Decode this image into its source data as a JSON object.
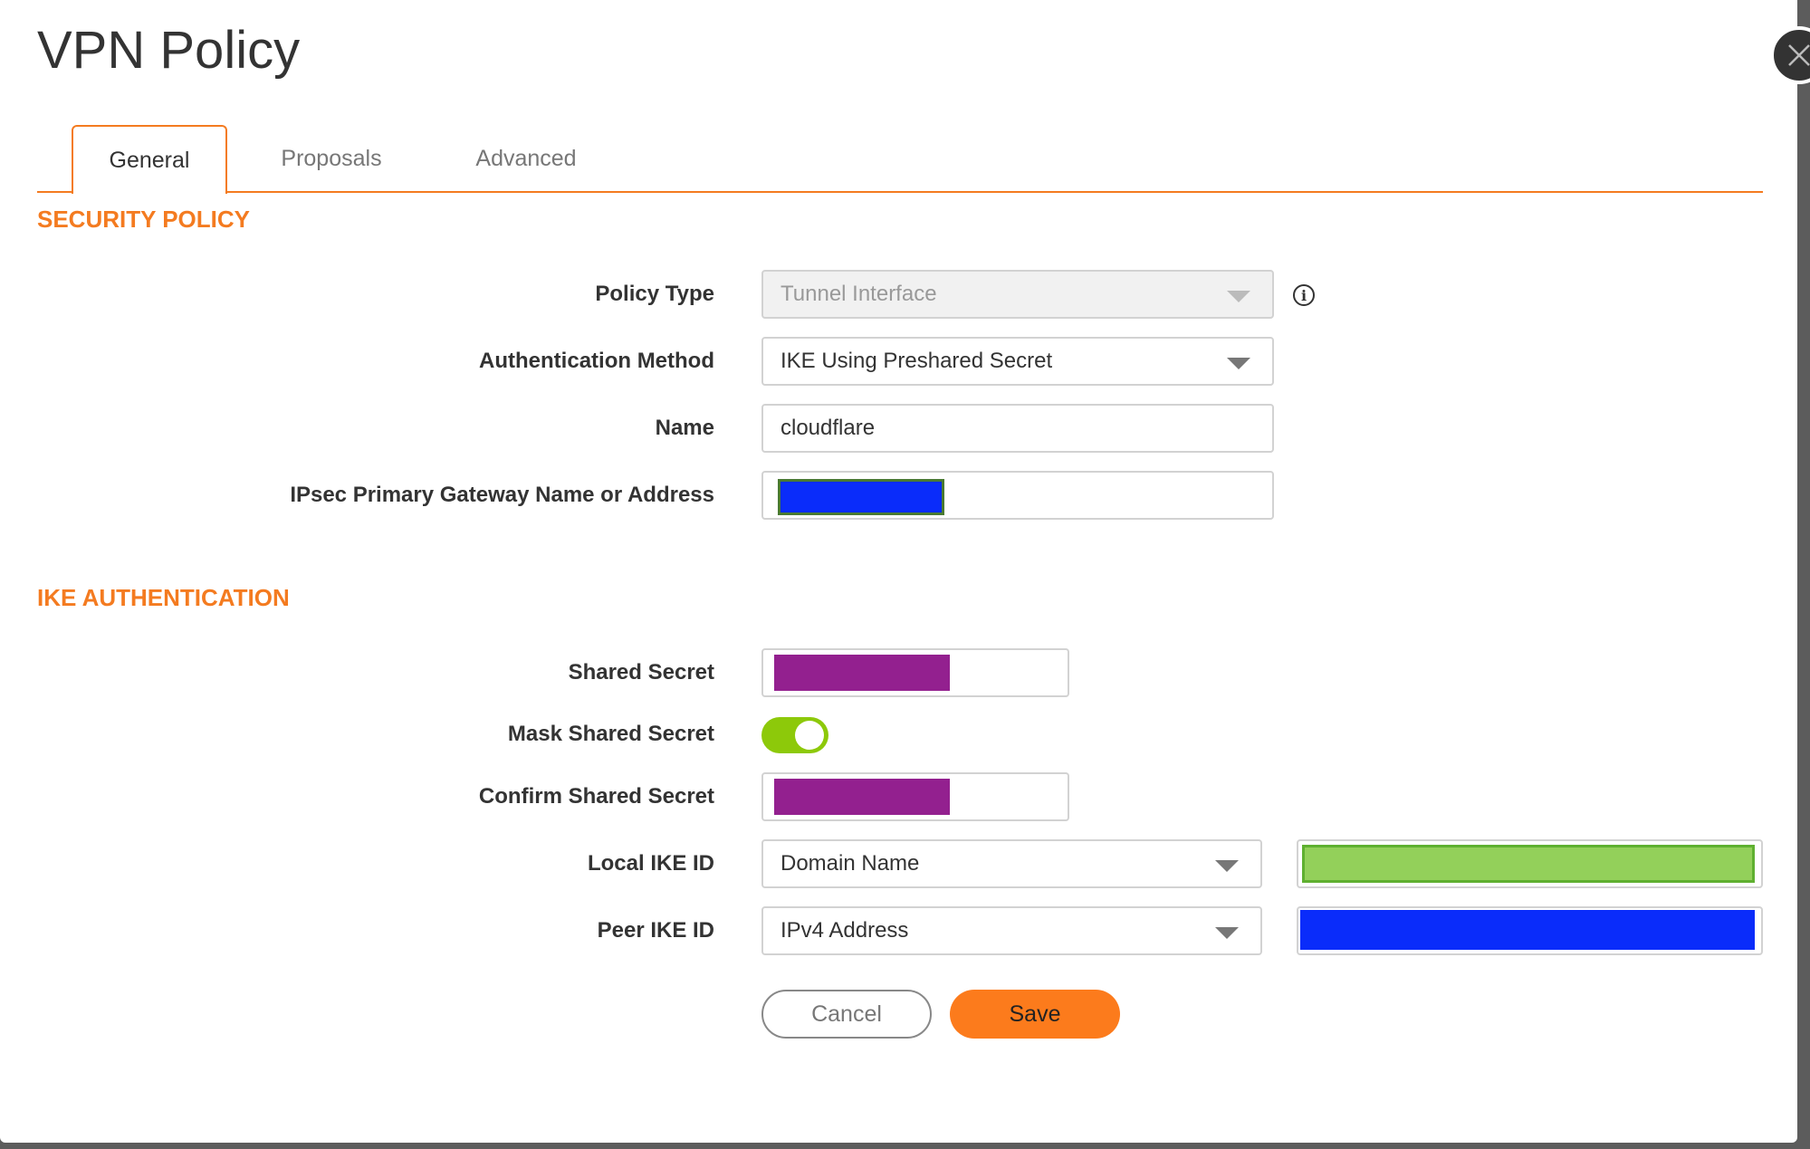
{
  "dialog": {
    "title": "VPN Policy"
  },
  "tabs": [
    {
      "label": "General",
      "active": true
    },
    {
      "label": "Proposals"
    },
    {
      "label": "Advanced"
    }
  ],
  "sections": {
    "security_policy": "SECURITY POLICY",
    "ike_authentication": "IKE AUTHENTICATION"
  },
  "form": {
    "policy_type": {
      "label": "Policy Type",
      "value": "Tunnel Interface",
      "disabled": true
    },
    "auth_method": {
      "label": "Authentication Method",
      "value": "IKE Using Preshared Secret"
    },
    "name": {
      "label": "Name",
      "value": "cloudflare"
    },
    "gateway": {
      "label": "IPsec Primary Gateway Name or Address",
      "redaction_color": "#0a2cfa"
    },
    "shared_secret": {
      "label": "Shared Secret",
      "redaction_color": "#93208f"
    },
    "mask_shared_secret": {
      "label": "Mask Shared Secret",
      "on": true,
      "color": "#8dc90a"
    },
    "confirm_shared_secret": {
      "label": "Confirm Shared Secret",
      "redaction_color": "#93208f"
    },
    "local_ike_id": {
      "label": "Local IKE ID",
      "type": "Domain Name",
      "redaction_color": "#93d05a"
    },
    "peer_ike_id": {
      "label": "Peer IKE ID",
      "type": "IPv4 Address",
      "redaction_color": "#0a2cfa"
    }
  },
  "buttons": {
    "cancel": "Cancel",
    "save": "Save"
  },
  "colors": {
    "accent": "#f47b20"
  }
}
